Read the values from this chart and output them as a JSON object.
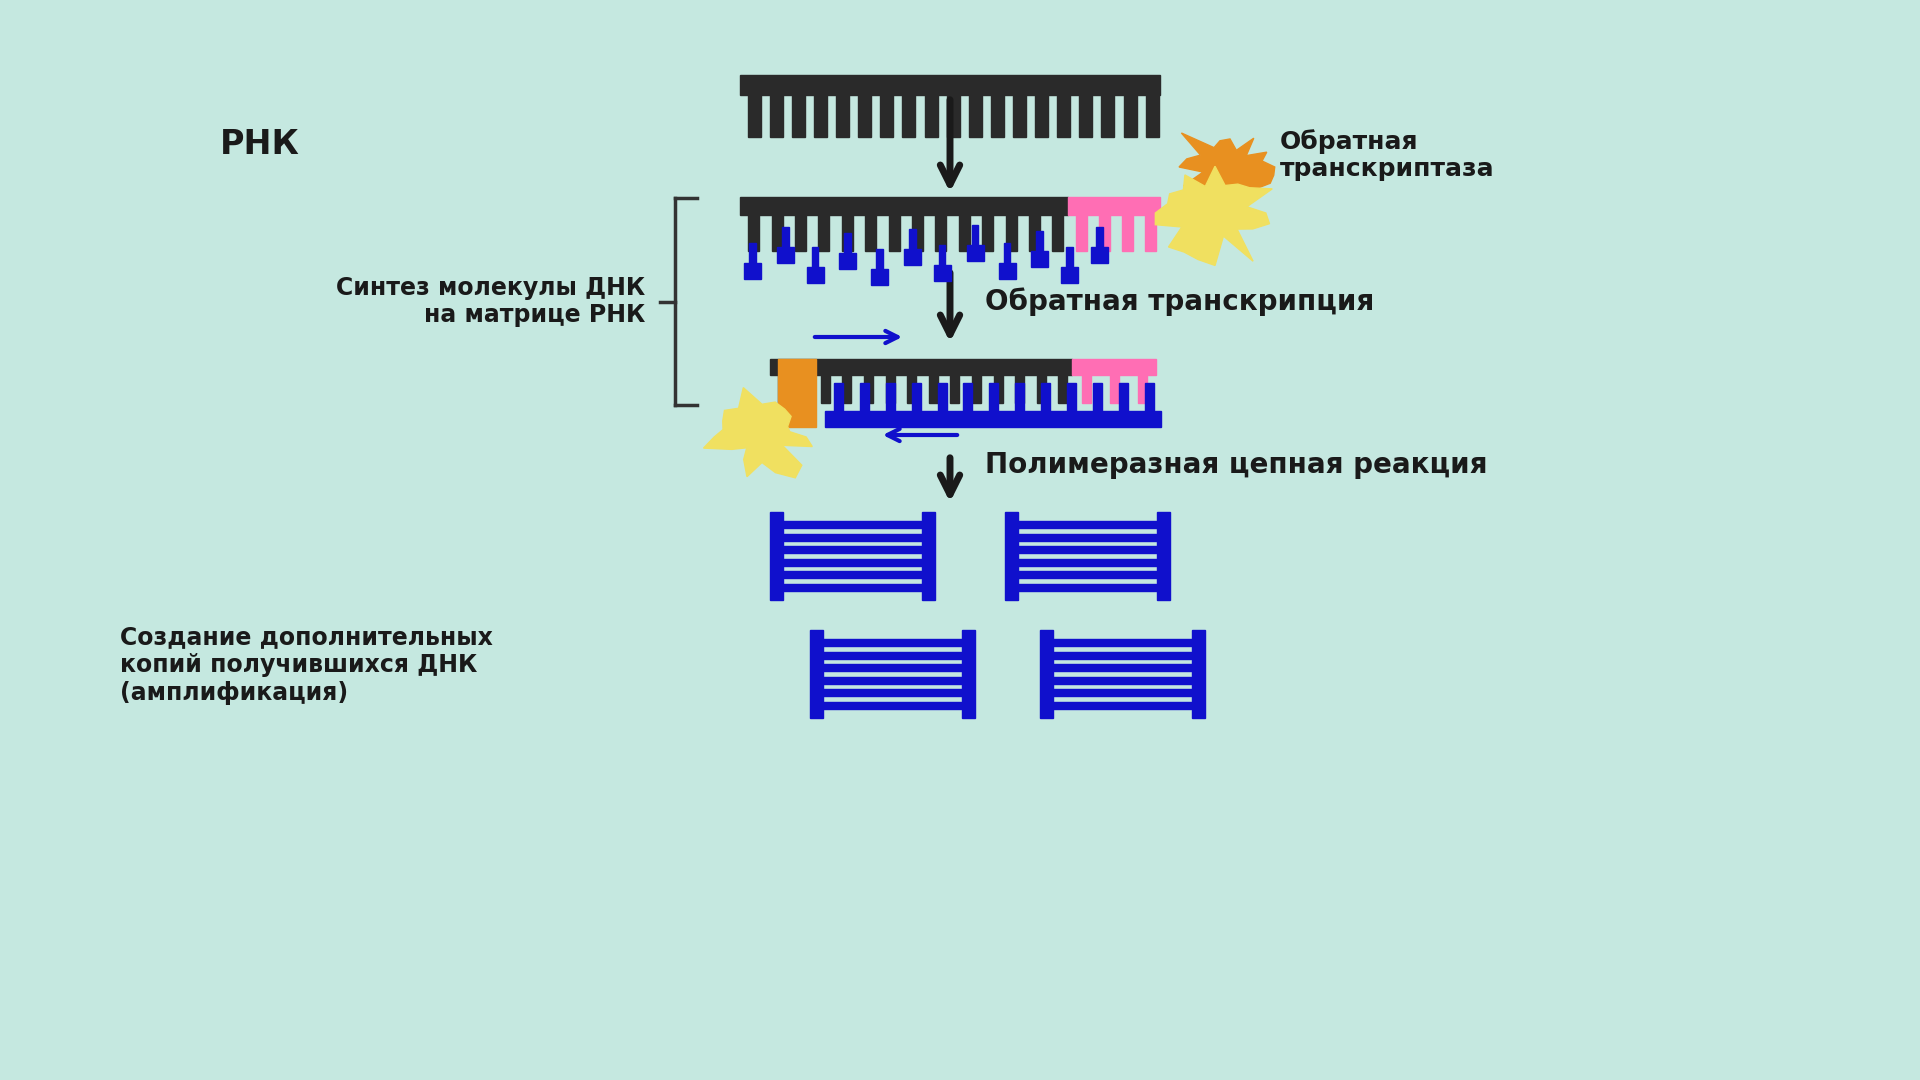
{
  "bg_color": "#c5e8e0",
  "dark_color": "#2a2a2a",
  "blue_color": "#1010cc",
  "pink_color": "#ff6eb4",
  "yellow_color": "#f0e060",
  "orange_color": "#e89020",
  "arrow_color": "#1a1a1a",
  "text_color": "#1a1a1a",
  "title_rnk": "РНК",
  "label_synthesis": "Синтез молекулы ДНК\nна матрице РНК",
  "label_reverse": "Обратная транскрипция",
  "label_reverse_enzyme": "Обратная\nтранскриптаза",
  "label_pcr": "Полимеразная цепная реакция",
  "label_amplification": "Создание дополнительных\nкопий получившихся ДНК\n(амплификация)"
}
